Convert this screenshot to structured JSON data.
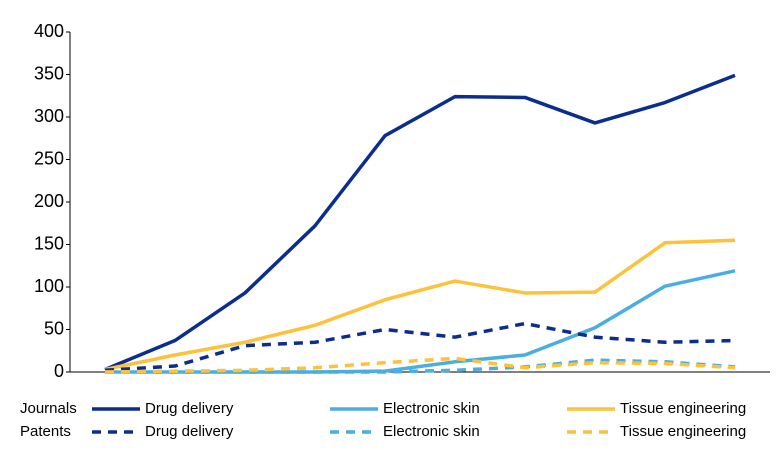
{
  "chart_data": {
    "type": "line",
    "categories": [
      null,
      null,
      null,
      null,
      null,
      null,
      null,
      null,
      null,
      null
    ],
    "ylim": [
      0,
      400
    ],
    "yticks": [
      0,
      50,
      100,
      150,
      200,
      250,
      300,
      350,
      400
    ],
    "legend_rows": [
      "Journals",
      "Patents"
    ],
    "series": [
      {
        "name": "Drug delivery",
        "color": "#0b2d8e",
        "style": "solid",
        "values": [
          3,
          37,
          93,
          172,
          278,
          324,
          323,
          293,
          317,
          349
        ]
      },
      {
        "name": "Electronic skin",
        "color": "#4aaee2",
        "style": "solid",
        "values": [
          0,
          0,
          0,
          0,
          1,
          12,
          20,
          52,
          101,
          119
        ]
      },
      {
        "name": "Tissue engineering",
        "color": "#fdc23b",
        "style": "solid",
        "values": [
          3,
          20,
          35,
          55,
          85,
          107,
          93,
          94,
          152,
          155
        ]
      },
      {
        "name": "Drug delivery",
        "color": "#0b2d8e",
        "style": "dashed",
        "values": [
          2,
          7,
          31,
          35,
          50,
          41,
          57,
          41,
          35,
          37
        ]
      },
      {
        "name": "Electronic skin",
        "color": "#4aaee2",
        "style": "dashed",
        "values": [
          0,
          0,
          0,
          0,
          0,
          2,
          6,
          14,
          12,
          6
        ]
      },
      {
        "name": "Tissue engineering",
        "color": "#fdc23b",
        "style": "dashed",
        "values": [
          0,
          1,
          2,
          5,
          11,
          16,
          5,
          11,
          10,
          5
        ]
      }
    ]
  }
}
